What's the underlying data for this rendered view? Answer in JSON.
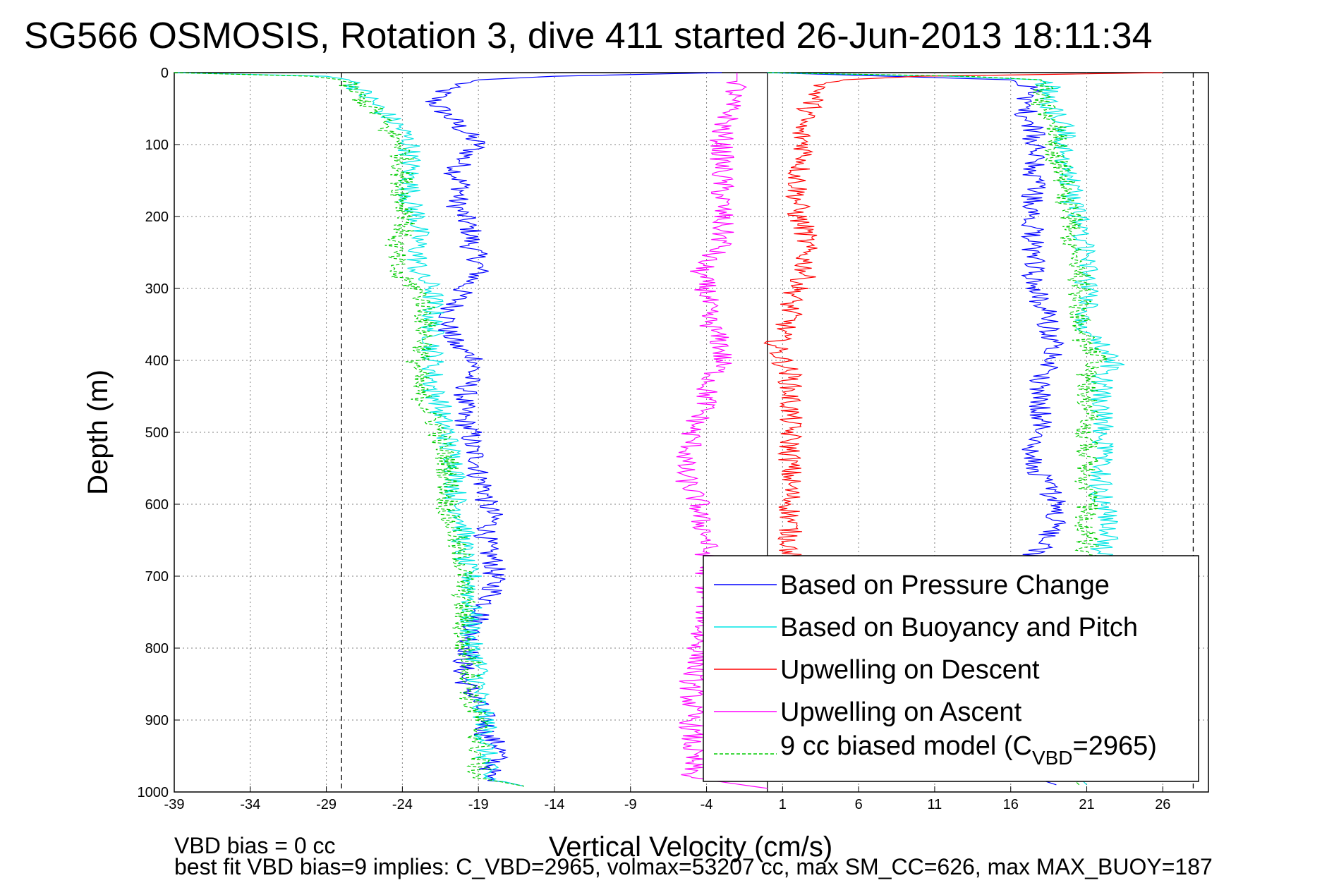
{
  "chart_data": {
    "type": "line",
    "title": "SG566 OSMOSIS, Rotation 3, dive 411 started 26-Jun-2013 18:11:34",
    "xlabel": "Vertical Velocity (cm/s)",
    "ylabel": "Depth (m)",
    "xlim": [
      -39,
      29
    ],
    "ylim": [
      1000,
      0
    ],
    "y_reversed": true,
    "grid": true,
    "x_ticks": [
      -39,
      -34,
      -29,
      -24,
      -19,
      -14,
      -9,
      -4,
      1,
      6,
      11,
      16,
      21,
      26
    ],
    "y_ticks": [
      0,
      100,
      200,
      300,
      400,
      500,
      600,
      700,
      800,
      900,
      1000
    ],
    "reference_lines": [
      {
        "x": -28,
        "style": "dashed",
        "color": "#000000"
      },
      {
        "x": 0,
        "style": "solid",
        "color": "#000000"
      },
      {
        "x": 28,
        "style": "dashed",
        "color": "#000000"
      }
    ],
    "legend": {
      "placement": "lower-right",
      "subscript_label": {
        "prefix": "9 cc biased model (C",
        "sub": "VBD",
        "suffix": "=2965)"
      }
    },
    "footer": {
      "line1": "VBD bias = 0 cc",
      "line2": "best fit VBD bias=9 implies: C_VBD=2965, volmax=53207 cc, max SM_CC=626, max MAX_BUOY=187"
    },
    "series": [
      {
        "name": "Based on Pressure Change",
        "color": "#0000ff",
        "style": "solid",
        "segments": [
          {
            "depth": [
              0,
              5,
              10,
              20,
              40,
              60,
              80,
              100,
              120,
              140,
              160,
              180,
              200,
              220,
              240,
              260,
              280,
              300,
              320,
              340,
              360,
              380,
              400,
              420,
              440,
              460,
              480,
              500,
              520,
              540,
              560,
              580,
              600,
              620,
              640,
              660,
              680,
              700,
              720,
              740,
              760,
              780,
              800,
              820,
              840,
              860,
              880,
              900,
              920,
              940,
              960,
              980,
              992
            ],
            "velocity": [
              -3,
              -14,
              -19,
              -21,
              -22,
              -21,
              -20,
              -19,
              -20,
              -20.5,
              -20,
              -20.5,
              -20,
              -19.5,
              -19.5,
              -19,
              -19,
              -20,
              -20.5,
              -21,
              -21,
              -20.5,
              -19,
              -19.5,
              -19.8,
              -20,
              -20,
              -19.5,
              -19.5,
              -19,
              -19,
              -18.5,
              -18.5,
              -18,
              -18.5,
              -18.5,
              -18,
              -18,
              -18,
              -18.5,
              -19,
              -19.5,
              -19.5,
              -20,
              -20,
              -19.5,
              -19,
              -18.5,
              -18.5,
              -17.5,
              -18,
              -18.5,
              -16
            ]
          },
          {
            "depth": [
              990,
              980,
              960,
              940,
              920,
              900,
              880,
              860,
              840,
              820,
              800,
              780,
              760,
              740,
              720,
              700,
              680,
              660,
              640,
              620,
              600,
              580,
              560,
              540,
              520,
              500,
              480,
              460,
              440,
              420,
              400,
              380,
              360,
              340,
              320,
              300,
              280,
              260,
              240,
              220,
              200,
              180,
              160,
              140,
              120,
              100,
              80,
              60,
              40,
              20,
              10,
              5,
              0
            ],
            "velocity": [
              19,
              17.5,
              17,
              16.5,
              16,
              15.5,
              15.2,
              15,
              15,
              15,
              15,
              15,
              15,
              15.5,
              16,
              16.5,
              17,
              18,
              18.5,
              19,
              19,
              18.5,
              18,
              17.5,
              17.5,
              18,
              18,
              18,
              18,
              18,
              19,
              19,
              18.5,
              18.5,
              18,
              17.5,
              17.5,
              17.5,
              17.5,
              17.5,
              17.5,
              17.5,
              17.5,
              17.5,
              17.5,
              17.5,
              17.5,
              17,
              17,
              17.5,
              16,
              8,
              0
            ]
          }
        ]
      },
      {
        "name": "Based on Buoyancy and Pitch",
        "color": "#00e5e5",
        "style": "solid",
        "segments": [
          {
            "depth": [
              0,
              5,
              10,
              20,
              40,
              60,
              80,
              100,
              120,
              140,
              160,
              180,
              200,
              220,
              240,
              260,
              280,
              300,
              320,
              340,
              360,
              380,
              400,
              420,
              440,
              460,
              480,
              500,
              520,
              540,
              560,
              580,
              600,
              620,
              640,
              660,
              680,
              700,
              720,
              740,
              760,
              780,
              800,
              820,
              840,
              860,
              880,
              900,
              920,
              940,
              960,
              980,
              992
            ],
            "velocity": [
              -39,
              -29,
              -27.5,
              -27,
              -26,
              -25,
              -24,
              -23.5,
              -23.5,
              -23.5,
              -23.5,
              -23.5,
              -23,
              -23,
              -23,
              -23,
              -23,
              -22,
              -22,
              -22,
              -22,
              -22,
              -22,
              -22,
              -22,
              -21.5,
              -21.5,
              -21,
              -21,
              -20.5,
              -20.5,
              -20.5,
              -20.5,
              -20,
              -20,
              -20,
              -20,
              -19.5,
              -19.5,
              -19.5,
              -19.5,
              -19.5,
              -19.5,
              -19,
              -19,
              -19,
              -19,
              -18.5,
              -18.5,
              -18.5,
              -18.5,
              -18.5,
              -16
            ]
          },
          {
            "depth": [
              990,
              980,
              960,
              940,
              920,
              900,
              880,
              860,
              840,
              820,
              800,
              780,
              760,
              740,
              720,
              700,
              680,
              660,
              640,
              620,
              600,
              580,
              560,
              540,
              520,
              500,
              480,
              460,
              440,
              420,
              400,
              380,
              360,
              340,
              320,
              300,
              280,
              260,
              240,
              220,
              200,
              180,
              160,
              140,
              120,
              100,
              80,
              60,
              40,
              20,
              10,
              5,
              0
            ],
            "velocity": [
              21,
              20.5,
              20.5,
              20.5,
              20.5,
              20.5,
              20.5,
              20.5,
              20.5,
              21,
              21.5,
              21.5,
              22,
              22,
              22,
              22,
              22,
              22,
              22.5,
              22.5,
              22,
              22,
              22,
              22,
              22,
              22,
              22,
              22,
              22,
              22,
              23,
              22,
              21,
              21,
              21,
              21,
              21,
              21,
              21,
              20.5,
              20.5,
              20,
              20,
              20,
              19.5,
              19.5,
              19.5,
              19,
              18.5,
              18.5,
              18,
              12,
              0
            ]
          }
        ]
      },
      {
        "name": "Upwelling on Descent",
        "color": "#ff0000",
        "style": "solid",
        "segments": [
          {
            "depth": [
              0,
              2,
              5,
              10,
              20,
              40,
              60,
              80,
              100,
              120,
              140,
              160,
              180,
              200,
              220,
              240,
              260,
              280,
              300,
              320,
              340,
              360,
              380,
              400,
              420,
              440,
              460,
              480,
              500,
              520,
              540,
              560,
              580,
              600,
              620,
              640,
              660,
              680,
              700
            ],
            "velocity": [
              26,
              20,
              10,
              5,
              3.5,
              3,
              2.5,
              2,
              2.5,
              2.5,
              2,
              2,
              2,
              2,
              2.5,
              2.5,
              2.5,
              2.5,
              2,
              1.5,
              1.5,
              1,
              0.5,
              1,
              1.5,
              1.5,
              1.5,
              1.5,
              1.5,
              1.5,
              1.5,
              1.5,
              1.5,
              1.5,
              1.5,
              1.5,
              1.5,
              1.5,
              1.5
            ]
          }
        ]
      },
      {
        "name": "Upwelling on Ascent",
        "color": "#ff00ff",
        "style": "solid",
        "segments": [
          {
            "depth": [
              0,
              20,
              40,
              60,
              80,
              100,
              120,
              140,
              160,
              180,
              200,
              220,
              240,
              260,
              280,
              300,
              320,
              340,
              360,
              380,
              400,
              420,
              440,
              460,
              480,
              500,
              520,
              540,
              560,
              580,
              600,
              620,
              640,
              660,
              680,
              700,
              720,
              740,
              760,
              780,
              800,
              820,
              840,
              860,
              880,
              900,
              920,
              940,
              960,
              980,
              995
            ],
            "velocity": [
              -2,
              -2,
              -2.5,
              -2.5,
              -3,
              -3,
              -3,
              -3,
              -3,
              -3,
              -3,
              -3,
              -3,
              -4,
              -4.5,
              -4,
              -4,
              -4,
              -3.5,
              -3,
              -3,
              -3.5,
              -4,
              -4,
              -4.5,
              -5,
              -5,
              -5.5,
              -5.5,
              -5,
              -4.5,
              -4.5,
              -4,
              -4,
              -4,
              -4,
              -4,
              -4,
              -4,
              -4.5,
              -4.5,
              -4.5,
              -5,
              -5,
              -5,
              -5,
              -5,
              -5,
              -5,
              -5,
              0
            ]
          }
        ]
      },
      {
        "name": "9 cc biased model",
        "color": "#00cc00",
        "style": "dashed",
        "segments": [
          {
            "depth": [
              0,
              5,
              10,
              20,
              40,
              60,
              80,
              100,
              120,
              140,
              160,
              180,
              200,
              220,
              240,
              260,
              280,
              300,
              320,
              340,
              360,
              380,
              400,
              420,
              440,
              460,
              480,
              500,
              520,
              540,
              560,
              580,
              600,
              620,
              640,
              660,
              680,
              700,
              720,
              740,
              760,
              780,
              800,
              820,
              840,
              860,
              880,
              900,
              920,
              940,
              960,
              980,
              992
            ],
            "velocity": [
              -39,
              -30,
              -28,
              -27.5,
              -26.5,
              -25.5,
              -25,
              -24,
              -24,
              -24,
              -24,
              -24,
              -23.5,
              -24,
              -24.5,
              -24.5,
              -24.5,
              -23,
              -22.5,
              -22.5,
              -22.5,
              -22.5,
              -23,
              -23,
              -23,
              -22.5,
              -22,
              -21.5,
              -21.5,
              -21,
              -21,
              -21,
              -21,
              -21,
              -20.5,
              -20.5,
              -20,
              -20,
              -20,
              -20,
              -20,
              -20,
              -20,
              -19.5,
              -19.5,
              -19.5,
              -19.5,
              -19,
              -19,
              -19,
              -19,
              -19,
              -16
            ]
          },
          {
            "depth": [
              990,
              980,
              960,
              940,
              920,
              900,
              880,
              860,
              840,
              820,
              800,
              780,
              760,
              740,
              720,
              700,
              680,
              660,
              640,
              620,
              600,
              580,
              560,
              540,
              520,
              500,
              480,
              460,
              440,
              420,
              400,
              380,
              360,
              340,
              320,
              300,
              280,
              260,
              240,
              220,
              200,
              180,
              160,
              140,
              120,
              100,
              80,
              60,
              40,
              20,
              10,
              5,
              0
            ],
            "velocity": [
              20.5,
              20,
              20,
              20,
              20,
              20,
              20,
              20,
              20,
              20.5,
              20.5,
              20.5,
              21,
              21,
              21,
              21,
              21,
              21,
              21,
              21,
              21,
              21,
              21,
              21,
              21,
              21,
              21,
              21,
              21,
              21,
              22,
              21,
              20.5,
              20.5,
              20.5,
              20.5,
              20.5,
              20,
              20,
              20,
              20,
              19.5,
              19.5,
              19.5,
              19,
              19,
              19,
              18.5,
              18,
              18,
              18,
              13,
              0
            ]
          }
        ]
      }
    ]
  }
}
